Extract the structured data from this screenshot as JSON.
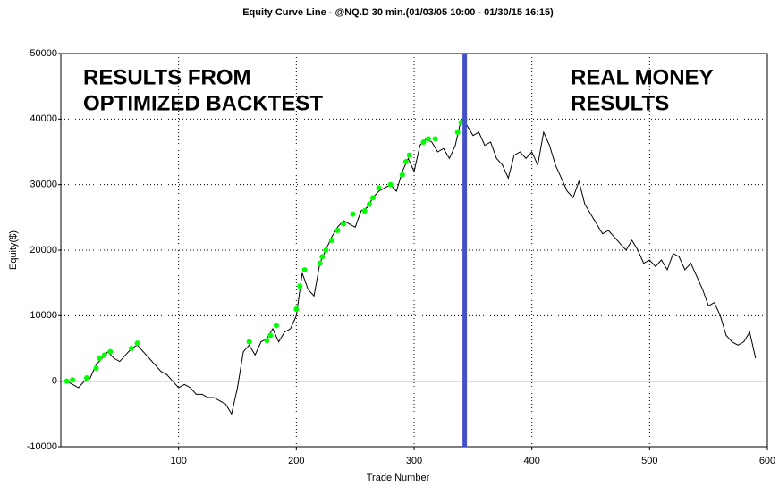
{
  "chart_data": {
    "type": "line",
    "title": "Equity Curve Line - @NQ.D 30 min.(01/03/05 10:00 - 01/30/15 16:15)",
    "xlabel": "Trade Number",
    "ylabel": "Equity($)",
    "xlim": [
      0,
      600
    ],
    "xticks": [
      100,
      200,
      300,
      400,
      500,
      600
    ],
    "ylim": [
      -10000,
      50000
    ],
    "yticks": [
      -10000,
      0,
      10000,
      20000,
      30000,
      40000,
      50000
    ],
    "grid": true,
    "series": [
      {
        "color": "#000000",
        "style": "line",
        "x": [
          0,
          5,
          10,
          15,
          20,
          25,
          30,
          35,
          40,
          45,
          50,
          55,
          60,
          65,
          70,
          75,
          80,
          85,
          90,
          95,
          100,
          105,
          110,
          115,
          120,
          125,
          130,
          135,
          140,
          145,
          150,
          155,
          160,
          165,
          170,
          175,
          180,
          185,
          190,
          195,
          200,
          205,
          210,
          215,
          220,
          225,
          230,
          235,
          240,
          245,
          250,
          255,
          260,
          265,
          270,
          275,
          280,
          285,
          290,
          295,
          300,
          305,
          310,
          315,
          320,
          325,
          330,
          335,
          340,
          345,
          350,
          355,
          360,
          365,
          370,
          375,
          380,
          385,
          390,
          395,
          400,
          405,
          410,
          415,
          420,
          425,
          430,
          435,
          440,
          445,
          450,
          455,
          460,
          465,
          470,
          475,
          480,
          485,
          490,
          495,
          500,
          505,
          510,
          515,
          520,
          525,
          530,
          535,
          540,
          545,
          550,
          555,
          560,
          565,
          570,
          575,
          580,
          585,
          590
        ],
        "values": [
          0,
          0,
          -500,
          -1000,
          0,
          500,
          2500,
          3500,
          4500,
          3500,
          3000,
          4000,
          5000,
          5500,
          4500,
          3500,
          2500,
          1500,
          1000,
          0,
          -1000,
          -500,
          -1000,
          -2000,
          -2000,
          -2500,
          -2500,
          -3000,
          -3500,
          -5000,
          -1000,
          4500,
          5500,
          4000,
          6000,
          6500,
          8000,
          6000,
          7500,
          8000,
          10000,
          16500,
          14000,
          13000,
          18000,
          20000,
          22000,
          23500,
          24500,
          24000,
          23500,
          26000,
          26500,
          28000,
          29000,
          29500,
          30000,
          29000,
          32000,
          34000,
          32000,
          36000,
          37000,
          36500,
          35000,
          35500,
          34000,
          36000,
          40000,
          39000,
          37500,
          38000,
          36000,
          36500,
          34000,
          33000,
          31000,
          34500,
          35000,
          34000,
          35000,
          33000,
          38000,
          36000,
          33000,
          31000,
          29000,
          28000,
          30500,
          27000,
          25500,
          24000,
          22500,
          23000,
          22000,
          21000,
          20000,
          21500,
          20000,
          18000,
          18500,
          17500,
          18500,
          17000,
          19500,
          19000,
          17000,
          18000,
          16000,
          14000,
          11500,
          12000,
          10000,
          7000,
          6000,
          5500,
          6000,
          7500,
          3500
        ]
      },
      {
        "color": "#00ff00",
        "style": "markers",
        "x": [
          5,
          10,
          22,
          30,
          33,
          37,
          42,
          60,
          65,
          160,
          175,
          178,
          183,
          200,
          203,
          207,
          220,
          222,
          225,
          230,
          235,
          240,
          248,
          258,
          262,
          265,
          270,
          280,
          290,
          293,
          296,
          308,
          312,
          318,
          337,
          340,
          343
        ],
        "values": [
          0,
          200,
          500,
          2000,
          3500,
          4000,
          4500,
          5000,
          5800,
          6000,
          6200,
          7000,
          8500,
          11000,
          14500,
          17000,
          18000,
          19000,
          20000,
          21500,
          23000,
          24000,
          25500,
          26000,
          27000,
          28000,
          29500,
          30000,
          31500,
          33500,
          34500,
          36500,
          37000,
          37000,
          38000,
          39500,
          40000
        ]
      }
    ],
    "divider": {
      "x": 343,
      "color": "#4450c8"
    },
    "annotations": [
      {
        "lines": [
          "RESULTS FROM",
          "OPTIMIZED BACKTEST"
        ],
        "color": "#4450c8"
      },
      {
        "lines": [
          "REAL MONEY",
          "RESULTS"
        ],
        "color": "#4450c8"
      }
    ]
  }
}
